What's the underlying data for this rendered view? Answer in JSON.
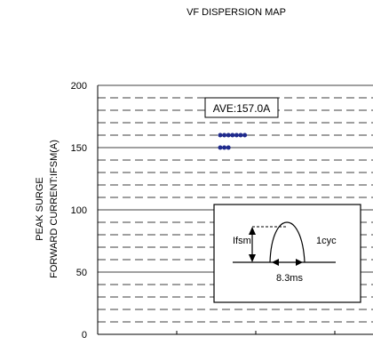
{
  "chart_data": {
    "type": "scatter",
    "title": "VF DISPERSION MAP",
    "ylabel": [
      "PEAK SURGE",
      "FORWARD CURRENT:IFSM(A)"
    ],
    "xlabel": "",
    "ylim": [
      0,
      200
    ],
    "yticks": [
      0,
      50,
      100,
      150,
      200
    ],
    "grid": "dashed-minor, solid-major",
    "points": [
      {
        "x": 1,
        "y": 160
      },
      {
        "x": 2,
        "y": 160
      },
      {
        "x": 3,
        "y": 160
      },
      {
        "x": 4,
        "y": 160
      },
      {
        "x": 5,
        "y": 160
      },
      {
        "x": 6,
        "y": 160
      },
      {
        "x": 7,
        "y": 160
      },
      {
        "x": 1,
        "y": 150
      },
      {
        "x": 2,
        "y": 150
      },
      {
        "x": 3,
        "y": 150
      }
    ],
    "marker_color": "#1f2a8c",
    "annotation": "AVE:157.0A",
    "inset": {
      "peak_label": "Ifsm",
      "cycle_label": "1cyc",
      "duration_label": "8.3ms"
    }
  }
}
